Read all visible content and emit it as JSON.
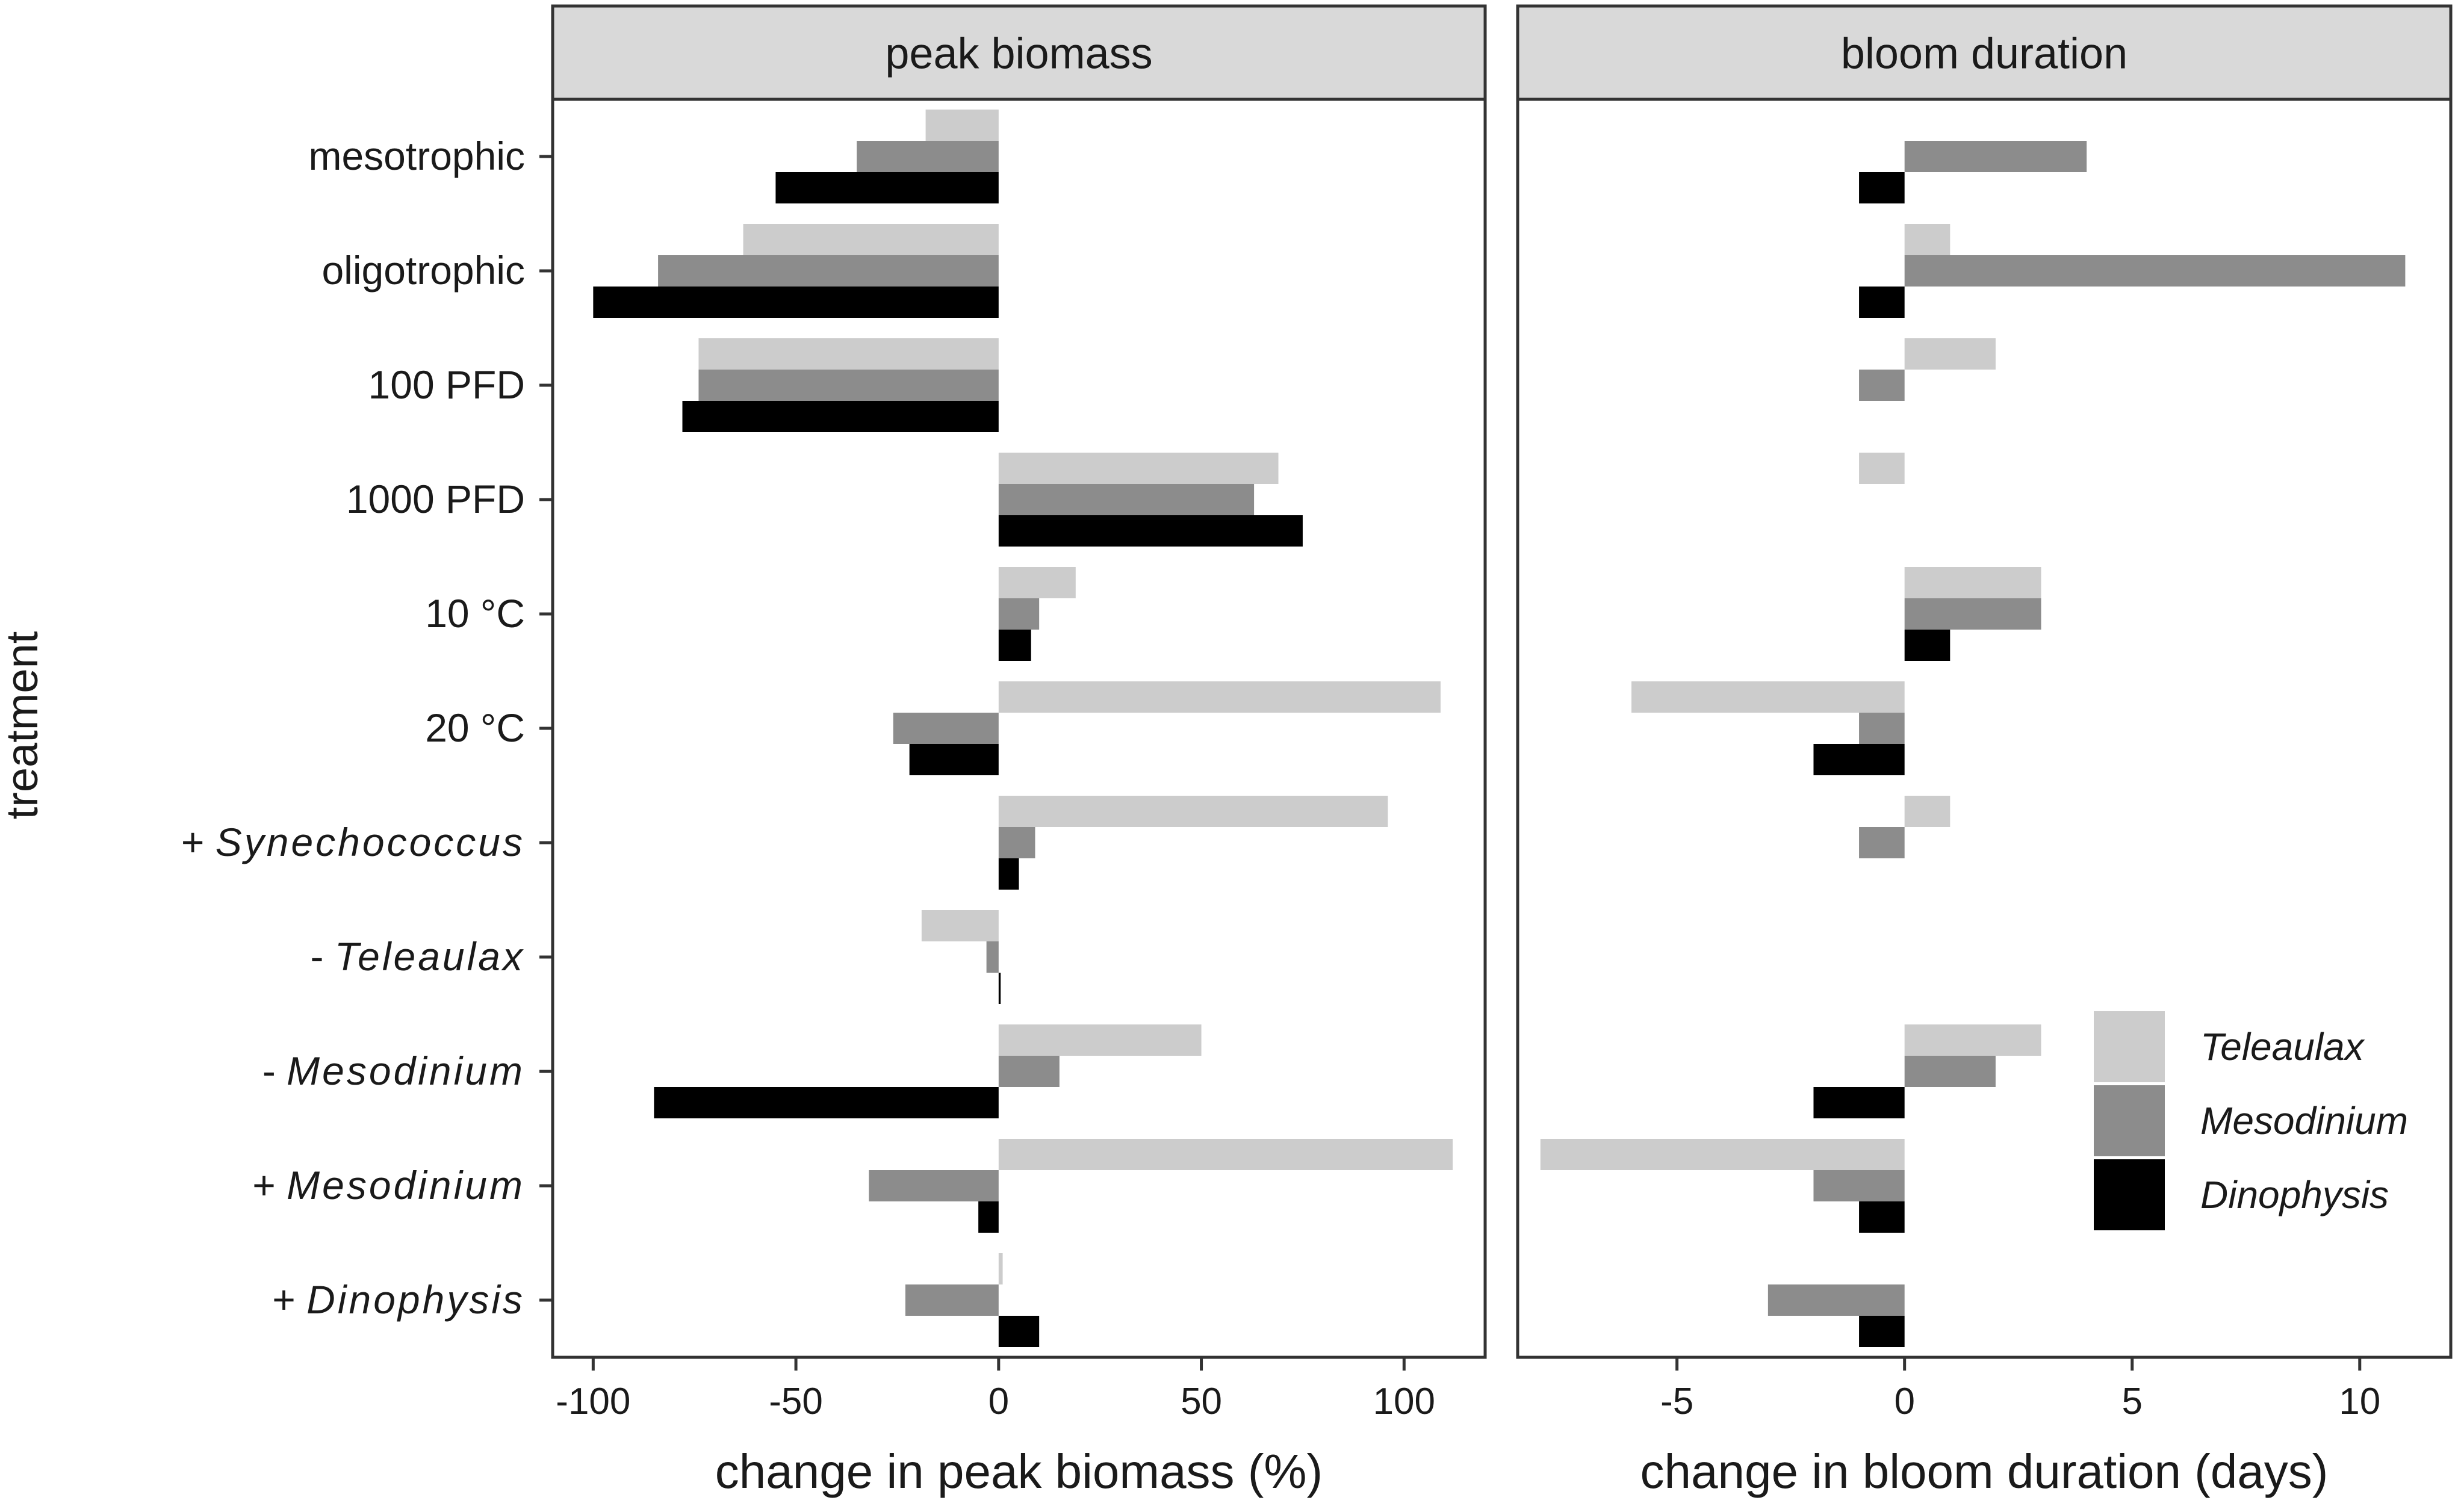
{
  "chart_data": {
    "type": "bar",
    "orientation": "horizontal",
    "ylabel": "treatment",
    "categories": [
      {
        "prefix": "",
        "name": "mesotrophic",
        "italic": false
      },
      {
        "prefix": "",
        "name": "oligotrophic",
        "italic": false
      },
      {
        "prefix": "",
        "name": "100 PFD",
        "italic": false
      },
      {
        "prefix": "",
        "name": "1000 PFD",
        "italic": false
      },
      {
        "prefix": "",
        "name": "10 °C",
        "italic": false
      },
      {
        "prefix": "",
        "name": "20 °C",
        "italic": false
      },
      {
        "prefix": "+ ",
        "name": "Synechococcus",
        "italic": true
      },
      {
        "prefix": "- ",
        "name": "Teleaulax",
        "italic": true
      },
      {
        "prefix": "- ",
        "name": "Mesodinium",
        "italic": true
      },
      {
        "prefix": "+ ",
        "name": "Mesodinium",
        "italic": true
      },
      {
        "prefix": "+ ",
        "name": "Dinophysis",
        "italic": true
      }
    ],
    "series_names": [
      "Teleaulax",
      "Mesodinium",
      "Dinophysis"
    ],
    "colors": [
      "#cccccc",
      "#8c8c8c",
      "#000000"
    ],
    "legend_position": "bottom-right, inside bloom duration panel",
    "grid": false,
    "panels": [
      {
        "strip": "peak biomass",
        "xlabel": "change in peak biomass (%)",
        "xlim": [
          -110,
          120
        ],
        "ticks": [
          -100,
          -50,
          0,
          50,
          100
        ],
        "tick_labels": [
          "-100",
          "-50",
          "0",
          "50",
          "100"
        ],
        "series": [
          {
            "name": "Teleaulax",
            "values": [
              -18,
              -63,
              -74,
              69,
              19,
              109,
              96,
              -19,
              50,
              112,
              1
            ]
          },
          {
            "name": "Mesodinium",
            "values": [
              -35,
              -84,
              -74,
              63,
              10,
              -26,
              9,
              -3,
              15,
              -32,
              -23
            ]
          },
          {
            "name": "Dinophysis",
            "values": [
              -55,
              -100,
              -78,
              75,
              8,
              -22,
              5,
              0.5,
              -85,
              -5,
              10
            ]
          }
        ]
      },
      {
        "strip": "bloom duration",
        "xlabel": "change in bloom duration (days)",
        "xlim": [
          -8.5,
          12
        ],
        "ticks": [
          -5,
          0,
          5,
          10
        ],
        "tick_labels": [
          "-5",
          "0",
          "5",
          "10"
        ],
        "series": [
          {
            "name": "Teleaulax",
            "values": [
              0,
              1,
              2,
              -1,
              3,
              -6,
              1,
              0,
              3,
              -8,
              0
            ]
          },
          {
            "name": "Mesodinium",
            "values": [
              4,
              11,
              -1,
              0,
              3,
              -1,
              -1,
              0,
              2,
              -2,
              -3
            ]
          },
          {
            "name": "Dinophysis",
            "values": [
              -1,
              -1,
              0,
              0,
              1,
              -2,
              0,
              0,
              -2,
              -1,
              -1
            ]
          }
        ]
      }
    ]
  }
}
